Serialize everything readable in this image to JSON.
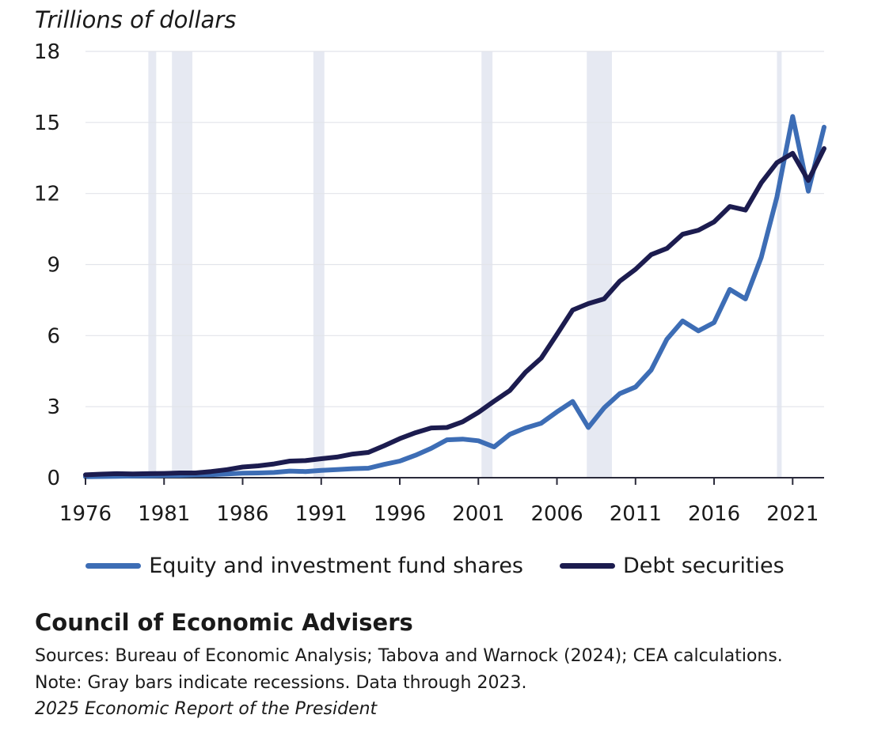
{
  "chart_data": {
    "type": "line",
    "ylabel": "Trillions of dollars",
    "ylim": [
      0,
      18
    ],
    "yticks": [
      0,
      3,
      6,
      9,
      12,
      15,
      18
    ],
    "yticks_labels": [
      "0",
      "3",
      "6",
      "9",
      "12",
      "15",
      "18"
    ],
    "xlim": [
      1976,
      2023
    ],
    "xticks": [
      1976,
      1981,
      1986,
      1991,
      1996,
      2001,
      2006,
      2011,
      2016,
      2021
    ],
    "xticks_labels": [
      "1976",
      "1981",
      "1986",
      "1991",
      "1996",
      "2001",
      "2006",
      "2011",
      "2016",
      "2021"
    ],
    "grid": true,
    "recessions": [
      [
        1980.0,
        1980.5
      ],
      [
        1981.5,
        1982.8
      ],
      [
        1990.5,
        1991.2
      ],
      [
        2001.2,
        2001.9
      ],
      [
        2007.9,
        2009.5
      ],
      [
        2020.0,
        2020.3
      ]
    ],
    "x": [
      1976,
      1977,
      1978,
      1979,
      1980,
      1981,
      1982,
      1983,
      1984,
      1985,
      1986,
      1987,
      1988,
      1989,
      1990,
      1991,
      1992,
      1993,
      1994,
      1995,
      1996,
      1997,
      1998,
      1999,
      2000,
      2001,
      2002,
      2003,
      2004,
      2005,
      2006,
      2007,
      2008,
      2009,
      2010,
      2011,
      2012,
      2013,
      2014,
      2015,
      2016,
      2017,
      2018,
      2019,
      2020,
      2021,
      2022,
      2023
    ],
    "series": [
      {
        "name": "Equity and investment fund shares",
        "color": "#3d6db5",
        "values": [
          0.04,
          0.05,
          0.06,
          0.07,
          0.08,
          0.09,
          0.1,
          0.12,
          0.13,
          0.16,
          0.19,
          0.2,
          0.22,
          0.28,
          0.26,
          0.31,
          0.34,
          0.38,
          0.4,
          0.56,
          0.7,
          0.95,
          1.24,
          1.6,
          1.63,
          1.56,
          1.3,
          1.83,
          2.1,
          2.3,
          2.78,
          3.22,
          2.12,
          2.95,
          3.55,
          3.83,
          4.55,
          5.85,
          6.62,
          6.2,
          6.55,
          7.95,
          7.55,
          9.3,
          11.85,
          15.25,
          12.1,
          14.8
        ]
      },
      {
        "name": "Debt securities",
        "color": "#1c1c4f",
        "values": [
          0.12,
          0.15,
          0.17,
          0.16,
          0.17,
          0.18,
          0.2,
          0.2,
          0.26,
          0.34,
          0.45,
          0.5,
          0.58,
          0.7,
          0.72,
          0.8,
          0.87,
          1.0,
          1.07,
          1.35,
          1.65,
          1.9,
          2.1,
          2.12,
          2.36,
          2.76,
          3.23,
          3.68,
          4.45,
          5.05,
          6.05,
          7.08,
          7.35,
          7.55,
          8.3,
          8.8,
          9.42,
          9.68,
          10.28,
          10.45,
          10.8,
          11.45,
          11.3,
          12.45,
          13.3,
          13.7,
          12.55,
          13.9
        ]
      }
    ],
    "legend": [
      "Equity and investment fund shares",
      "Debt securities"
    ]
  },
  "footer": {
    "title": "Council of Economic Advisers",
    "sources": "Sources: Bureau of Economic Analysis; Tabova and Warnock (2024); CEA calculations.",
    "note": "Note: Gray bars indicate recessions. Data through 2023.",
    "report": "2025 Economic Report of the President"
  }
}
